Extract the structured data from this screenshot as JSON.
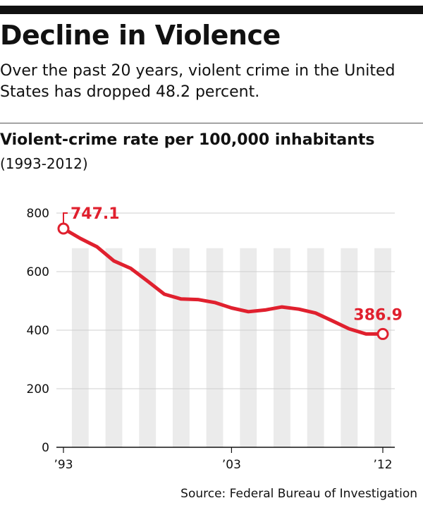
{
  "header": {
    "title": "Decline in Violence",
    "subtitle": "Over the past 20 years, violent crime in the United States has dropped 48.2 percent."
  },
  "chart_title": "Violent-crime rate per 100,000 inhabitants",
  "chart_years": "(1993-2012)",
  "source": "Source: Federal Bureau of Investigation",
  "colors": {
    "line": "#e0202e",
    "band": "#ebebeb",
    "grid": "#cfcfcf",
    "text": "#111111"
  },
  "chart_data": {
    "type": "line",
    "x": [
      1993,
      1994,
      1995,
      1996,
      1997,
      1998,
      1999,
      2000,
      2001,
      2002,
      2003,
      2004,
      2005,
      2006,
      2007,
      2008,
      2009,
      2010,
      2011,
      2012
    ],
    "values": [
      747.1,
      713.6,
      684.5,
      636.6,
      611.0,
      567.6,
      523.0,
      506.5,
      504.5,
      494.4,
      475.8,
      463.2,
      469.0,
      479.3,
      471.8,
      458.6,
      431.9,
      404.5,
      387.1,
      386.9
    ],
    "ylim": [
      0,
      800
    ],
    "yticks": [
      "0",
      "200",
      "400",
      "600",
      "800"
    ],
    "ytick_values": [
      0,
      200,
      400,
      600,
      800
    ],
    "xtick_labels": [
      {
        "x": 1993,
        "label": "’93"
      },
      {
        "x": 2003,
        "label": "’03"
      },
      {
        "x": 2012,
        "label": "’12"
      }
    ],
    "annotations": [
      {
        "x": 1993,
        "label": "747.1"
      },
      {
        "x": 2012,
        "label": "386.9"
      }
    ],
    "grid": true,
    "legend": "none"
  }
}
